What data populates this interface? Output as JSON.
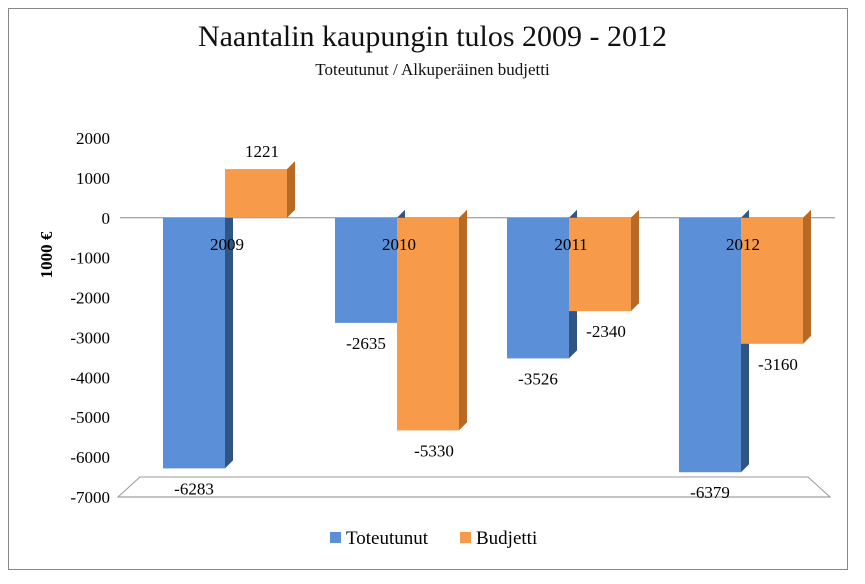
{
  "chart_data": {
    "type": "bar",
    "title": "Naantalin kaupungin tulos 2009 - 2012",
    "subtitle": "Toteutunut / Alkuperäinen budjetti",
    "xlabel": "",
    "ylabel": "1000 €",
    "ylim": [
      -7000,
      2000
    ],
    "yticks": [
      2000,
      1000,
      0,
      -1000,
      -2000,
      -3000,
      -4000,
      -5000,
      -6000,
      -7000
    ],
    "categories": [
      "2009",
      "2010",
      "2011",
      "2012"
    ],
    "series": [
      {
        "name": "Toteutunut",
        "color": "#5b8fd8",
        "values": [
          -6283,
          -2635,
          -3526,
          -6379
        ]
      },
      {
        "name": "Budjetti",
        "color": "#f79a4a",
        "values": [
          1221,
          -5330,
          -2340,
          -3160
        ]
      }
    ],
    "legend": "bottom"
  }
}
